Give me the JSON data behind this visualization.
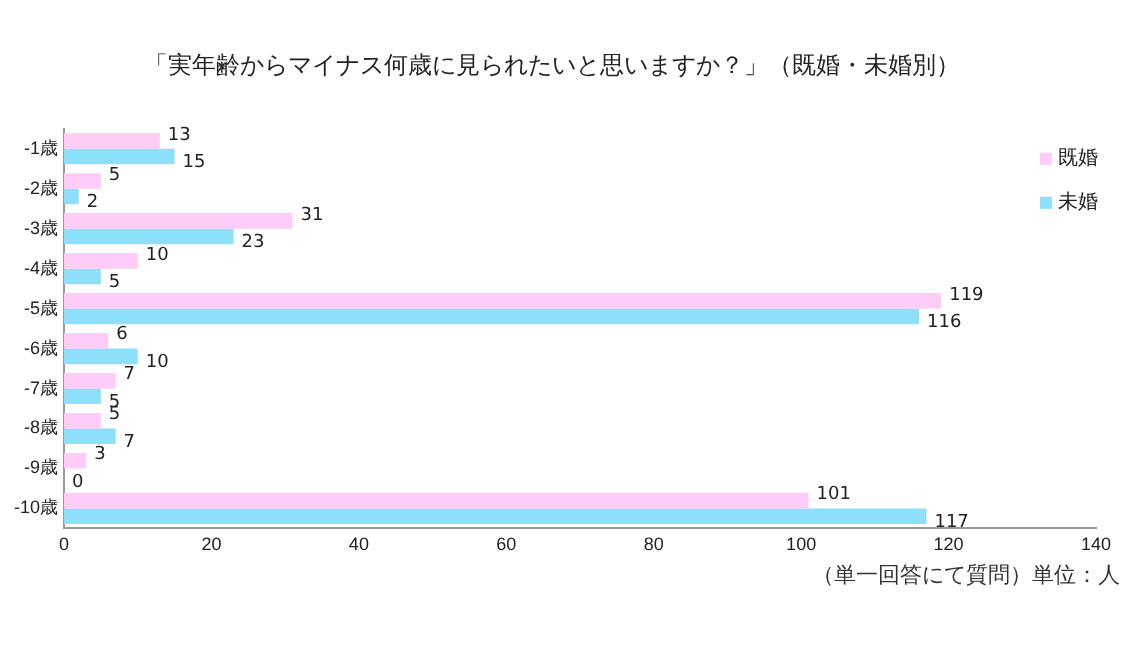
{
  "chart_data": {
    "type": "bar",
    "orientation": "horizontal",
    "title": "「実年齢からマイナス何歳に見られたいと思いますか？」（既婚・未婚別）",
    "categories": [
      "-1歳",
      "-2歳",
      "-3歳",
      "-4歳",
      "-5歳",
      "-6歳",
      "-7歳",
      "-8歳",
      "-9歳",
      "-10歳"
    ],
    "series": [
      {
        "name": "既婚",
        "color": "#ffccf7",
        "values": [
          13,
          5,
          31,
          10,
          119,
          6,
          7,
          5,
          3,
          101
        ]
      },
      {
        "name": "未婚",
        "color": "#8ce0fa",
        "values": [
          15,
          2,
          23,
          5,
          116,
          10,
          5,
          7,
          0,
          117
        ]
      }
    ],
    "xlim": [
      0,
      140
    ],
    "xticks": [
      0,
      20,
      40,
      60,
      80,
      100,
      120,
      140
    ],
    "grid": false,
    "legend": "right",
    "data_labels": true,
    "annotations": [
      "（単一回答にて質問）単位：人"
    ]
  }
}
